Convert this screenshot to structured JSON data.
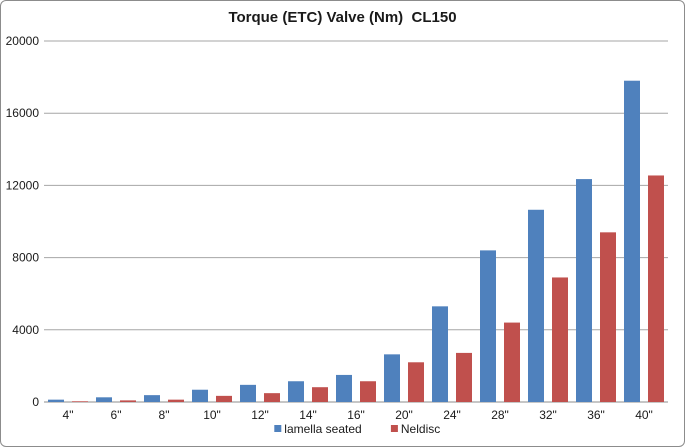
{
  "chart_data": {
    "type": "bar",
    "title": "Torque (ETC) Valve (Nm)  CL150",
    "xlabel": "",
    "ylabel": "",
    "categories": [
      "4\"",
      "6\"",
      "8\"",
      "10\"",
      "12\"",
      "14\"",
      "16\"",
      "20\"",
      "24\"",
      "28\"",
      "32\"",
      "36\"",
      "40\""
    ],
    "series": [
      {
        "name": "lamella seated",
        "color": "#4f81bd",
        "values": [
          130,
          260,
          380,
          680,
          950,
          1150,
          1500,
          2640,
          5300,
          8400,
          10650,
          12350,
          17800
        ]
      },
      {
        "name": "Neldisc",
        "color": "#c0504d",
        "values": [
          40,
          90,
          130,
          340,
          490,
          820,
          1150,
          2200,
          2720,
          4400,
          6900,
          9400,
          12550
        ]
      }
    ],
    "ylim": [
      0,
      20000
    ],
    "yticks": [
      0,
      4000,
      8000,
      12000,
      16000,
      20000
    ],
    "grid": true,
    "legend_position": "bottom"
  }
}
